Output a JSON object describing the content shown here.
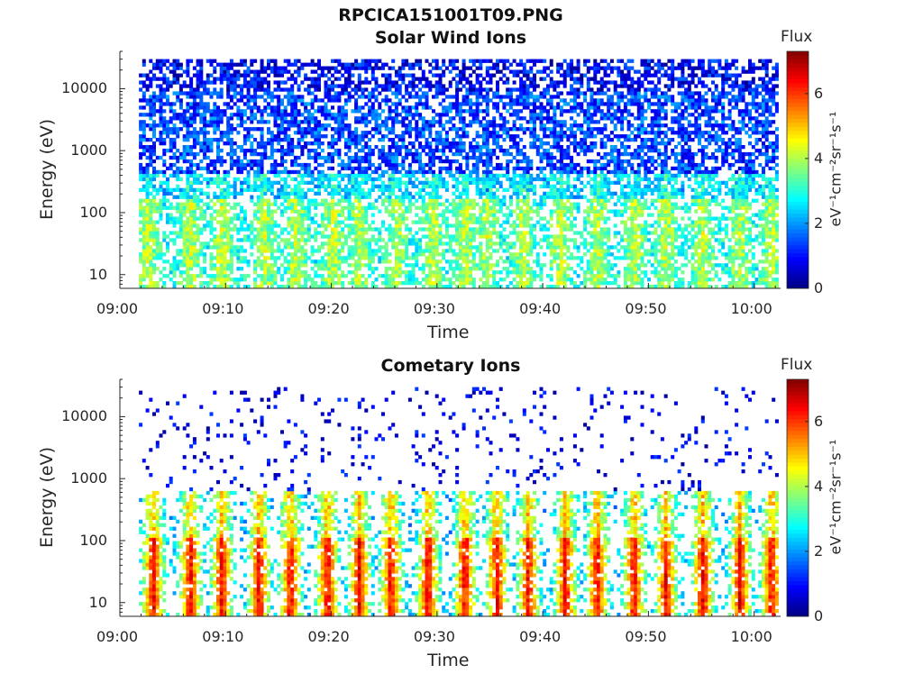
{
  "figure_title": "RPCICA151001T09.PNG",
  "colormap": [
    "#00007f",
    "#0000ff",
    "#007fff",
    "#00ffff",
    "#7fff7f",
    "#ffff00",
    "#ff7f00",
    "#ff0000",
    "#7f0000"
  ],
  "chart_data": [
    {
      "type": "heatmap",
      "title": "Solar Wind Ions",
      "xlabel": "Time",
      "ylabel": "Energy (eV)",
      "x_ticks": [
        "09:00",
        "09:10",
        "09:20",
        "09:30",
        "09:40",
        "09:50",
        "10:00"
      ],
      "y_ticks": [
        "10",
        "100",
        "1000",
        "10000"
      ],
      "y_scale": "log",
      "ylim": [
        6,
        40000
      ],
      "xlim_minutes": [
        0,
        62.5
      ],
      "data_start_minute": 1.8,
      "data_end_minute": 62.3,
      "colorbar": {
        "label": "Flux",
        "units": "eV⁻¹cm⁻²sr⁻¹s⁻¹",
        "ticks": [
          "0",
          "2",
          "4",
          "6"
        ],
        "range": [
          0,
          7.3
        ]
      },
      "description_values": {
        "high_energy_band_eV": [
          300,
          20000
        ],
        "low_energy_band_eV": [
          6,
          400
        ],
        "typical_flux_low": 3.8,
        "typical_flux_high": 1.2
      },
      "burst_minutes": [
        2.5,
        6.5,
        9.5,
        13.5,
        16.5,
        20.0,
        22.5,
        26.0,
        29.5,
        32.5,
        34.6,
        38.0,
        41.5,
        45.0,
        48.5,
        51.5,
        55.0,
        58.5,
        61.5
      ]
    },
    {
      "type": "heatmap",
      "title": "Cometary Ions",
      "xlabel": "Time",
      "ylabel": "Energy (eV)",
      "x_ticks": [
        "09:00",
        "09:10",
        "09:20",
        "09:30",
        "09:40",
        "09:50",
        "10:00"
      ],
      "y_ticks": [
        "10",
        "100",
        "1000",
        "10000"
      ],
      "y_scale": "log",
      "ylim": [
        6,
        40000
      ],
      "xlim_minutes": [
        0,
        62.5
      ],
      "data_start_minute": 1.8,
      "data_end_minute": 62.3,
      "colorbar": {
        "label": "Flux",
        "units": "eV⁻¹cm⁻²sr⁻¹s⁻¹",
        "ticks": [
          "0",
          "2",
          "4",
          "6"
        ],
        "range": [
          0,
          7.3
        ]
      },
      "description_values": {
        "sparse_band_eV": [
          800,
          12000
        ],
        "burst_band_eV": [
          6,
          400
        ],
        "burst_peak_flux": 6.5
      },
      "burst_minutes": [
        3.0,
        6.5,
        9.5,
        13.0,
        16.0,
        19.5,
        22.5,
        25.5,
        29.0,
        32.5,
        35.5,
        38.5,
        42.0,
        45.0,
        48.5,
        51.5,
        55.0,
        58.5,
        61.5
      ]
    }
  ]
}
